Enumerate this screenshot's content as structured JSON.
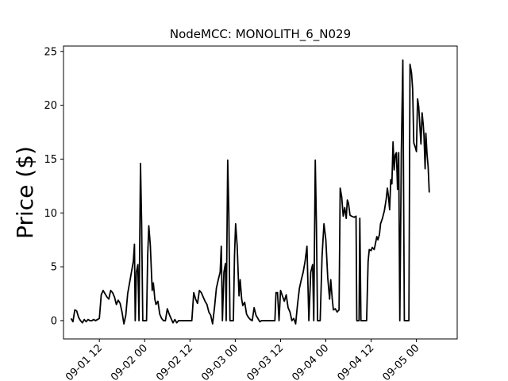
{
  "chart_data": {
    "type": "line",
    "title": "NodeMCC: MONOLITH_6_N029",
    "xlabel": "",
    "ylabel": "Price ($)",
    "x_ticks": [
      "09-01 12",
      "09-02 00",
      "09-02 12",
      "09-03 00",
      "09-03 12",
      "09-04 00",
      "09-04 12",
      "09-05 00"
    ],
    "x_tick_hours": [
      12,
      24,
      36,
      48,
      60,
      72,
      84,
      96
    ],
    "xlim": [
      2.5,
      106.8
    ],
    "y_ticks": [
      0,
      5,
      10,
      15,
      20,
      25
    ],
    "ylim": [
      -1.7,
      25.5
    ],
    "grid": false,
    "series": [
      {
        "color": "#000000",
        "points": [
          [
            4.5,
            0.2
          ],
          [
            5.0,
            -0.1
          ],
          [
            5.5,
            1.0
          ],
          [
            6.0,
            0.9
          ],
          [
            6.5,
            0.3
          ],
          [
            7.0,
            0.0
          ],
          [
            7.5,
            -0.2
          ],
          [
            8.0,
            0.1
          ],
          [
            8.5,
            -0.1
          ],
          [
            9.0,
            0.1
          ],
          [
            9.5,
            0.0
          ],
          [
            10.0,
            0.0
          ],
          [
            10.5,
            0.1
          ],
          [
            11.0,
            0.0
          ],
          [
            11.5,
            0.1
          ],
          [
            12.0,
            0.2
          ],
          [
            12.5,
            2.4
          ],
          [
            13.0,
            2.8
          ],
          [
            13.5,
            2.5
          ],
          [
            14.0,
            2.2
          ],
          [
            14.5,
            2.0
          ],
          [
            15.0,
            2.8
          ],
          [
            15.5,
            2.6
          ],
          [
            16.0,
            2.2
          ],
          [
            16.5,
            1.5
          ],
          [
            17.0,
            1.9
          ],
          [
            17.5,
            1.6
          ],
          [
            18.0,
            0.8
          ],
          [
            18.5,
            -0.3
          ],
          [
            19.0,
            0.5
          ],
          [
            19.5,
            2.5
          ],
          [
            20.0,
            3.5
          ],
          [
            20.5,
            4.5
          ],
          [
            21.0,
            5.5
          ],
          [
            21.3,
            7.1
          ],
          [
            21.5,
            0.0
          ],
          [
            21.8,
            4.5
          ],
          [
            22.2,
            5.2
          ],
          [
            22.5,
            0.0
          ],
          [
            22.9,
            14.6
          ],
          [
            23.2,
            9.0
          ],
          [
            23.5,
            0.0
          ],
          [
            24.5,
            0.0
          ],
          [
            24.8,
            6.0
          ],
          [
            25.1,
            8.8
          ],
          [
            25.5,
            7.0
          ],
          [
            26.0,
            2.8
          ],
          [
            26.3,
            3.5
          ],
          [
            26.7,
            2.0
          ],
          [
            27.0,
            1.5
          ],
          [
            27.5,
            1.8
          ],
          [
            28.0,
            0.6
          ],
          [
            28.5,
            0.2
          ],
          [
            29.0,
            0.0
          ],
          [
            29.5,
            0.0
          ],
          [
            30.0,
            1.1
          ],
          [
            30.5,
            0.6
          ],
          [
            31.0,
            0.2
          ],
          [
            31.5,
            -0.2
          ],
          [
            32.0,
            0.1
          ],
          [
            32.5,
            -0.2
          ],
          [
            33.0,
            0.0
          ],
          [
            34.0,
            0.0
          ],
          [
            35.0,
            0.0
          ],
          [
            36.5,
            0.0
          ],
          [
            37.0,
            2.6
          ],
          [
            37.5,
            2.0
          ],
          [
            38.0,
            1.6
          ],
          [
            38.5,
            2.8
          ],
          [
            39.0,
            2.6
          ],
          [
            39.5,
            2.2
          ],
          [
            40.0,
            1.8
          ],
          [
            40.5,
            1.5
          ],
          [
            41.0,
            0.8
          ],
          [
            41.5,
            0.5
          ],
          [
            42.0,
            -0.3
          ],
          [
            42.5,
            1.2
          ],
          [
            43.0,
            3.0
          ],
          [
            43.5,
            3.8
          ],
          [
            44.0,
            4.5
          ],
          [
            44.3,
            6.9
          ],
          [
            44.6,
            0.0
          ],
          [
            45.0,
            4.5
          ],
          [
            45.4,
            5.3
          ],
          [
            45.6,
            0.0
          ],
          [
            46.0,
            14.9
          ],
          [
            46.3,
            10.0
          ],
          [
            46.6,
            0.0
          ],
          [
            47.5,
            0.0
          ],
          [
            47.8,
            6.0
          ],
          [
            48.1,
            9.0
          ],
          [
            48.5,
            7.0
          ],
          [
            49.0,
            2.3
          ],
          [
            49.3,
            3.8
          ],
          [
            49.7,
            2.0
          ],
          [
            50.0,
            1.4
          ],
          [
            50.5,
            1.7
          ],
          [
            51.0,
            0.6
          ],
          [
            51.5,
            0.3
          ],
          [
            52.0,
            0.1
          ],
          [
            52.5,
            0.0
          ],
          [
            53.0,
            1.2
          ],
          [
            53.5,
            0.5
          ],
          [
            54.0,
            0.2
          ],
          [
            54.5,
            -0.1
          ],
          [
            55.0,
            0.0
          ],
          [
            56.0,
            0.0
          ],
          [
            57.0,
            0.0
          ],
          [
            58.0,
            0.0
          ],
          [
            58.5,
            0.0
          ],
          [
            58.8,
            2.6
          ],
          [
            59.2,
            2.6
          ],
          [
            59.6,
            0.0
          ],
          [
            60.0,
            2.8
          ],
          [
            60.5,
            2.3
          ],
          [
            61.0,
            1.8
          ],
          [
            61.5,
            2.4
          ],
          [
            62.0,
            1.2
          ],
          [
            62.5,
            0.8
          ],
          [
            63.0,
            0.0
          ],
          [
            63.5,
            0.2
          ],
          [
            64.0,
            -0.3
          ],
          [
            64.5,
            1.5
          ],
          [
            65.0,
            3.0
          ],
          [
            65.5,
            3.8
          ],
          [
            66.0,
            4.5
          ],
          [
            66.5,
            5.5
          ],
          [
            67.0,
            6.9
          ],
          [
            67.5,
            0.0
          ],
          [
            68.0,
            4.5
          ],
          [
            68.5,
            5.2
          ],
          [
            68.8,
            0.0
          ],
          [
            69.2,
            14.9
          ],
          [
            69.5,
            9.0
          ],
          [
            69.8,
            0.0
          ],
          [
            70.5,
            0.0
          ],
          [
            71.0,
            6.0
          ],
          [
            71.5,
            9.0
          ],
          [
            72.0,
            7.5
          ],
          [
            72.5,
            4.0
          ],
          [
            73.0,
            2.0
          ],
          [
            73.3,
            3.8
          ],
          [
            73.7,
            2.0
          ],
          [
            74.0,
            1.0
          ],
          [
            74.5,
            1.1
          ],
          [
            75.0,
            0.8
          ],
          [
            75.5,
            1.0
          ],
          [
            75.8,
            12.3
          ],
          [
            76.2,
            11.5
          ],
          [
            76.6,
            9.7
          ],
          [
            77.0,
            10.5
          ],
          [
            77.4,
            9.5
          ],
          [
            77.7,
            11.2
          ],
          [
            78.0,
            10.9
          ],
          [
            78.4,
            9.8
          ],
          [
            78.8,
            9.7
          ],
          [
            79.5,
            9.6
          ],
          [
            80.0,
            9.7
          ],
          [
            80.2,
            0.0
          ],
          [
            80.8,
            0.0
          ],
          [
            81.0,
            9.5
          ],
          [
            81.3,
            0.0
          ],
          [
            82.0,
            0.0
          ],
          [
            82.8,
            0.0
          ],
          [
            83.2,
            5.5
          ],
          [
            83.5,
            6.6
          ],
          [
            84.0,
            6.5
          ],
          [
            84.3,
            6.8
          ],
          [
            84.8,
            6.6
          ],
          [
            85.0,
            6.9
          ],
          [
            85.5,
            7.8
          ],
          [
            85.8,
            7.5
          ],
          [
            86.2,
            8.0
          ],
          [
            86.5,
            9.0
          ],
          [
            87.0,
            9.5
          ],
          [
            87.5,
            10.2
          ],
          [
            88.0,
            11.3
          ],
          [
            88.3,
            12.3
          ],
          [
            88.6,
            11.5
          ],
          [
            88.9,
            10.3
          ],
          [
            89.2,
            13.1
          ],
          [
            89.5,
            12.7
          ],
          [
            89.8,
            16.6
          ],
          [
            90.1,
            14.0
          ],
          [
            90.4,
            15.4
          ],
          [
            90.7,
            15.6
          ],
          [
            91.0,
            12.2
          ],
          [
            91.3,
            15.6
          ],
          [
            91.6,
            0.0
          ],
          [
            92.0,
            15.7
          ],
          [
            92.4,
            24.2
          ],
          [
            92.8,
            0.0
          ],
          [
            93.5,
            0.0
          ],
          [
            94.0,
            0.0
          ],
          [
            94.3,
            23.8
          ],
          [
            94.7,
            23.0
          ],
          [
            95.0,
            21.5
          ],
          [
            95.3,
            16.5
          ],
          [
            95.7,
            16.1
          ],
          [
            96.0,
            15.7
          ],
          [
            96.3,
            20.6
          ],
          [
            96.6,
            19.9
          ],
          [
            96.9,
            18.1
          ],
          [
            97.2,
            16.4
          ],
          [
            97.5,
            19.3
          ],
          [
            97.8,
            18.2
          ],
          [
            98.0,
            17.2
          ],
          [
            98.3,
            14.1
          ],
          [
            98.5,
            17.4
          ],
          [
            98.8,
            15.5
          ],
          [
            99.1,
            14.3
          ],
          [
            99.4,
            11.9
          ]
        ]
      }
    ]
  }
}
